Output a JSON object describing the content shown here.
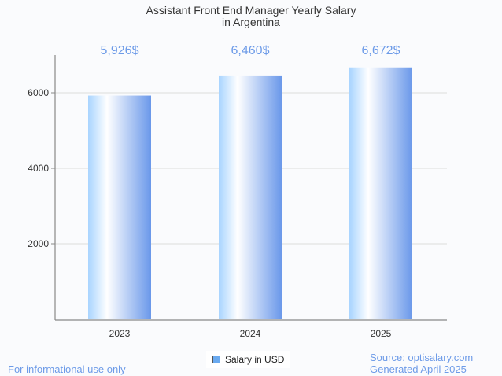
{
  "chart_data": {
    "type": "bar",
    "title": "Assistant Front End Manager Yearly Salary",
    "subtitle": "in Argentina",
    "categories": [
      "2023",
      "2024",
      "2025"
    ],
    "values": [
      5926,
      6460,
      6672
    ],
    "data_labels": [
      "5,926$",
      "6,460$",
      "6,672$"
    ],
    "yticks": [
      2000,
      4000,
      6000
    ],
    "ylim": [
      0,
      7000
    ],
    "xlabel": "",
    "ylabel": "",
    "grid": true,
    "legend": {
      "entries": [
        "Salary in USD"
      ],
      "placement": "bottom-center"
    }
  },
  "footer": {
    "left": "For informational use only",
    "source": "Source: optisalary.com",
    "generated": "Generated April 2025"
  },
  "colors": {
    "label": "#6d9be8",
    "bar_start": "#a8d4ff",
    "bar_end": "#6a98ea"
  }
}
